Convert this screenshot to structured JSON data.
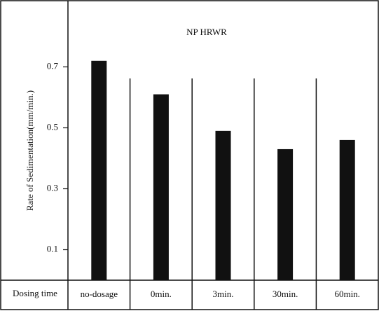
{
  "chart_data": {
    "type": "bar",
    "title": "NP HRWR",
    "y_label": "Rate of Sedimentation(mm/min.)",
    "x_label": "Dosing time",
    "categories": [
      "no-dosage",
      "0min.",
      "3min.",
      "30min.",
      "60min."
    ],
    "values": [
      0.72,
      0.61,
      0.49,
      0.43,
      0.46
    ],
    "color": "#111111",
    "ylim": [
      0,
      0.9
    ],
    "yticks": [
      0.1,
      0.3,
      0.5,
      0.7
    ]
  }
}
